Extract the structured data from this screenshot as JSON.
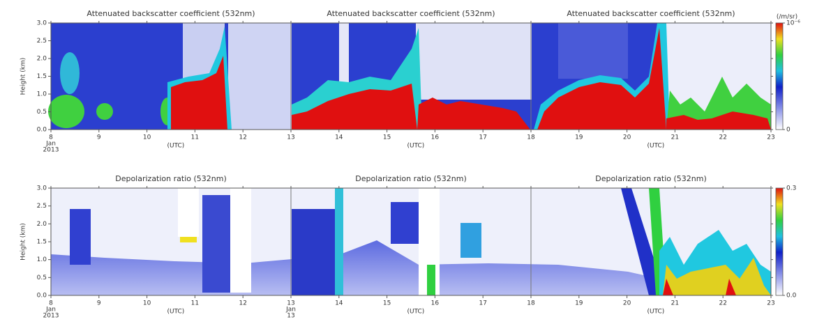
{
  "charts": [
    {
      "type": "heatmap",
      "titles": [
        "Attenuated backscatter coefficient (532nm)",
        "Attenuated backscatter coefficient (532nm)",
        "Attenuated backscatter coefficient (532nm)"
      ],
      "y_label": "Height (km)",
      "x_unit_labels": [
        "(UTC)",
        "(UTC)",
        "(UTC)"
      ],
      "xlim": [
        8,
        23
      ],
      "xticks": [
        8,
        9,
        10,
        11,
        12,
        13,
        14,
        15,
        16,
        17,
        18,
        19,
        20,
        21,
        22,
        23
      ],
      "date_labels": [
        {
          "x": 8,
          "lines": [
            "Jan",
            "2013"
          ]
        }
      ],
      "ylim": [
        0,
        3
      ],
      "yticks": [
        {
          "value": 0,
          "label": "0.0"
        },
        {
          "value": 0.5,
          "label": "0.5"
        },
        {
          "value": 1,
          "label": "1.0"
        },
        {
          "value": 1.5,
          "label": "1.5"
        },
        {
          "value": 2,
          "label": "2.0"
        },
        {
          "value": 2.5,
          "label": "2.5"
        },
        {
          "value": 3,
          "label": "3.0"
        }
      ],
      "colorbar_unit": "(/m/sr)",
      "clim": [
        0,
        1e-06
      ],
      "colorbar_ticks": [
        {
          "value": 0,
          "label": "0"
        },
        {
          "value": 1e-06,
          "label": "10⁻⁶"
        }
      ]
    },
    {
      "type": "heatmap",
      "titles": [
        "Depolarization ratio (532nm)",
        "Depolarization ratio (532nm)",
        "Depolarization ratio (532nm)"
      ],
      "y_label": "Height (km)",
      "x_unit_labels": [
        "(UTC)",
        "(UTC)",
        "(UTC)"
      ],
      "xlim": [
        8,
        23
      ],
      "xticks": [
        8,
        9,
        10,
        11,
        12,
        13,
        14,
        15,
        16,
        17,
        18,
        19,
        20,
        21,
        22,
        23
      ],
      "date_labels": [
        {
          "x": 8,
          "lines": [
            "Jan",
            "2013"
          ]
        },
        {
          "x": 13,
          "lines": [
            "Jan",
            "13"
          ]
        }
      ],
      "ylim": [
        0,
        3
      ],
      "yticks": [
        {
          "value": 0,
          "label": "0.0"
        },
        {
          "value": 0.5,
          "label": "0.5"
        },
        {
          "value": 1,
          "label": "1.0"
        },
        {
          "value": 1.5,
          "label": "1.5"
        },
        {
          "value": 2,
          "label": "2.0"
        },
        {
          "value": 2.5,
          "label": "2.5"
        },
        {
          "value": 3,
          "label": "3.0"
        }
      ],
      "clim": [
        0,
        0.3
      ],
      "colorbar_ticks": [
        {
          "value": 0,
          "label": "0.0"
        },
        {
          "value": 0.3,
          "label": "0.3"
        }
      ]
    }
  ]
}
